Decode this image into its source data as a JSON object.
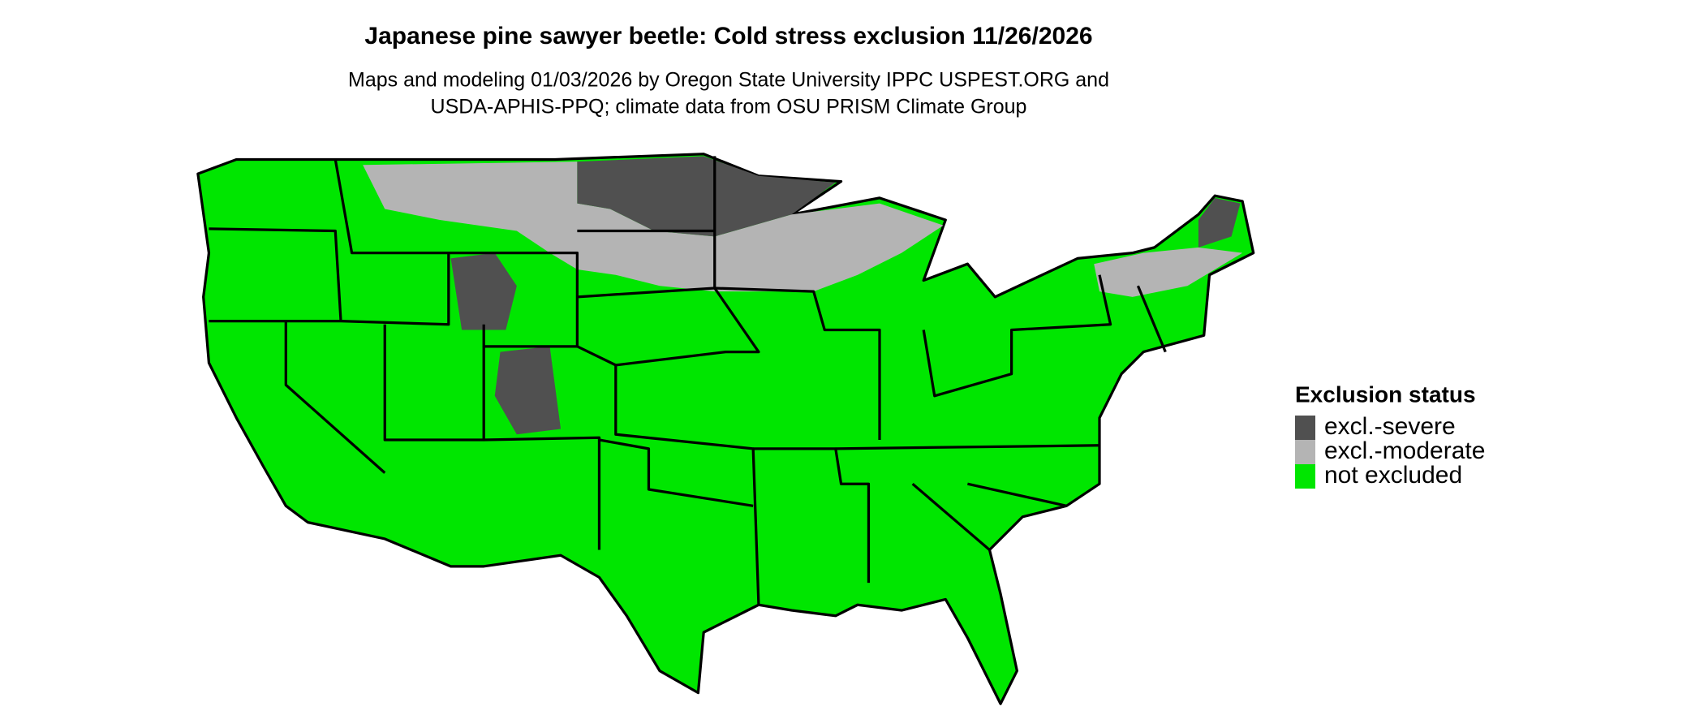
{
  "title": "Japanese pine sawyer beetle: Cold stress exclusion 11/26/2026",
  "subtitle": [
    "Maps and modeling 01/03/2026 by Oregon State University IPPC USPEST.ORG and",
    "USDA-APHIS-PPQ; climate data from OSU PRISM Climate Group"
  ],
  "legend": {
    "title": "Exclusion status",
    "items": [
      {
        "label": "excl.-severe",
        "color": "#505050"
      },
      {
        "label": "excl.-moderate",
        "color": "#b4b4b4"
      },
      {
        "label": "not excluded",
        "color": "#00e600"
      }
    ]
  }
}
